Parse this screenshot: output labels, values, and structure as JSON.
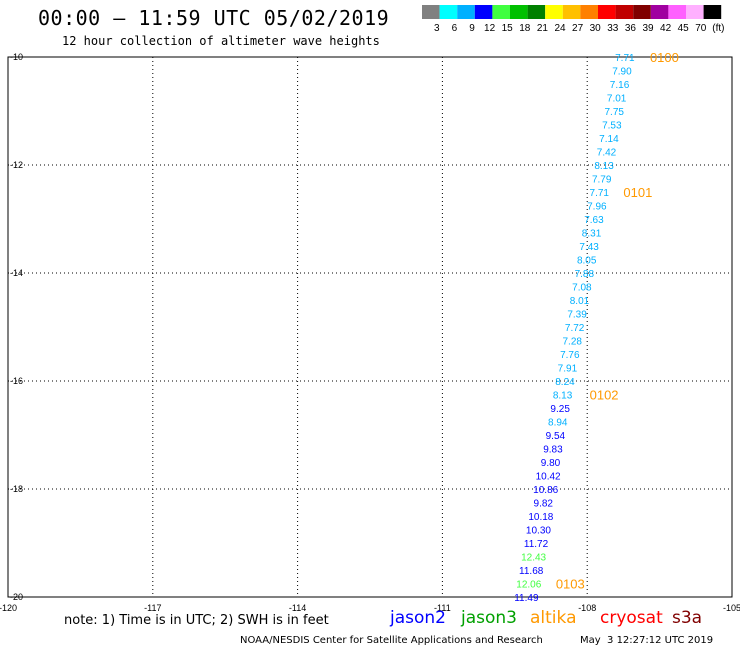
{
  "header": {
    "title": "00:00 – 11:59 UTC 05/02/2019",
    "subtitle": "12 hour collection of altimeter wave heights"
  },
  "colorbar": {
    "labels": [
      "3",
      "6",
      "9",
      "12",
      "15",
      "18",
      "21",
      "24",
      "27",
      "30",
      "33",
      "36",
      "39",
      "42",
      "45",
      "70",
      "(ft)"
    ],
    "colors": [
      "#808080",
      "#00ffff",
      "#00b0ff",
      "#0000ff",
      "#40ff40",
      "#00c000",
      "#008000",
      "#ffff00",
      "#ffc000",
      "#ff8000",
      "#ff0000",
      "#c00000",
      "#800000",
      "#a000a0",
      "#ff60ff",
      "#ffb0ff",
      "#000000"
    ]
  },
  "satellites": {
    "jason2": {
      "label": "jason2",
      "color": "#0000ff"
    },
    "jason3": {
      "label": "jason3",
      "color": "#00a000"
    },
    "altika": {
      "label": "altika",
      "color": "#ff9900"
    },
    "cryosat": {
      "label": "cryosat",
      "color": "#ff0000"
    },
    "s3a": {
      "label": "s3a",
      "color": "#800000"
    }
  },
  "footer": {
    "note": "note: 1) Time is in UTC; 2) SWH is in feet",
    "credit": "NOAA/NESDIS Center for Satellite Applications and Research",
    "timestamp": "May  3 12:27:12 UTC 2019"
  },
  "chart_data": {
    "type": "scatter",
    "x_ticks": [
      "-120",
      "-117",
      "-114",
      "-111",
      "-108",
      "-105"
    ],
    "y_ticks": [
      "-10",
      "-12",
      "-14",
      "-16",
      "-18",
      "-20"
    ],
    "xlim": [
      -120,
      -105
    ],
    "ylim": [
      -20,
      -10
    ],
    "grid": true,
    "points": [
      {
        "lon": -107.22,
        "lat": -10.0,
        "value": "7.71",
        "color": "#00b0ff"
      },
      {
        "lon": -107.28,
        "lat": -10.25,
        "value": "7.90",
        "color": "#00b0ff"
      },
      {
        "lon": -107.33,
        "lat": -10.5,
        "value": "7.16",
        "color": "#00b0ff"
      },
      {
        "lon": -107.39,
        "lat": -10.75,
        "value": "7.01",
        "color": "#00b0ff"
      },
      {
        "lon": -107.44,
        "lat": -11.0,
        "value": "7.75",
        "color": "#00b0ff"
      },
      {
        "lon": -107.49,
        "lat": -11.25,
        "value": "7.53",
        "color": "#00b0ff"
      },
      {
        "lon": -107.55,
        "lat": -11.5,
        "value": "7.14",
        "color": "#00b0ff"
      },
      {
        "lon": -107.6,
        "lat": -11.75,
        "value": "7.42",
        "color": "#00b0ff"
      },
      {
        "lon": -107.65,
        "lat": -12.0,
        "value": "8.13",
        "color": "#00b0ff"
      },
      {
        "lon": -107.7,
        "lat": -12.25,
        "value": "7.79",
        "color": "#00b0ff"
      },
      {
        "lon": -107.75,
        "lat": -12.5,
        "value": "7.71",
        "color": "#00b0ff"
      },
      {
        "lon": -107.8,
        "lat": -12.75,
        "value": "7.96",
        "color": "#00b0ff"
      },
      {
        "lon": -107.86,
        "lat": -13.0,
        "value": "7.63",
        "color": "#00b0ff"
      },
      {
        "lon": -107.91,
        "lat": -13.25,
        "value": "8.31",
        "color": "#00b0ff"
      },
      {
        "lon": -107.96,
        "lat": -13.5,
        "value": "7.43",
        "color": "#00b0ff"
      },
      {
        "lon": -108.01,
        "lat": -13.75,
        "value": "8.05",
        "color": "#00b0ff"
      },
      {
        "lon": -108.06,
        "lat": -14.0,
        "value": "7.88",
        "color": "#00b0ff"
      },
      {
        "lon": -108.11,
        "lat": -14.25,
        "value": "7.08",
        "color": "#00b0ff"
      },
      {
        "lon": -108.16,
        "lat": -14.5,
        "value": "8.01",
        "color": "#00b0ff"
      },
      {
        "lon": -108.21,
        "lat": -14.75,
        "value": "7.39",
        "color": "#00b0ff"
      },
      {
        "lon": -108.26,
        "lat": -15.0,
        "value": "7.72",
        "color": "#00b0ff"
      },
      {
        "lon": -108.31,
        "lat": -15.25,
        "value": "7.28",
        "color": "#00b0ff"
      },
      {
        "lon": -108.36,
        "lat": -15.5,
        "value": "7.76",
        "color": "#00b0ff"
      },
      {
        "lon": -108.41,
        "lat": -15.75,
        "value": "7.91",
        "color": "#00b0ff"
      },
      {
        "lon": -108.46,
        "lat": -16.0,
        "value": "8.24",
        "color": "#00b0ff"
      },
      {
        "lon": -108.51,
        "lat": -16.25,
        "value": "8.13",
        "color": "#00b0ff"
      },
      {
        "lon": -108.56,
        "lat": -16.5,
        "value": "9.25",
        "color": "#0000ff"
      },
      {
        "lon": -108.61,
        "lat": -16.75,
        "value": "8.94",
        "color": "#00b0ff"
      },
      {
        "lon": -108.66,
        "lat": -17.0,
        "value": "9.54",
        "color": "#0000ff"
      },
      {
        "lon": -108.71,
        "lat": -17.25,
        "value": "9.83",
        "color": "#0000ff"
      },
      {
        "lon": -108.76,
        "lat": -17.5,
        "value": "9.80",
        "color": "#0000ff"
      },
      {
        "lon": -108.81,
        "lat": -17.75,
        "value": "10.42",
        "color": "#0000ff"
      },
      {
        "lon": -108.86,
        "lat": -18.0,
        "value": "10.86",
        "color": "#0000ff"
      },
      {
        "lon": -108.91,
        "lat": -18.25,
        "value": "9.82",
        "color": "#0000ff"
      },
      {
        "lon": -108.96,
        "lat": -18.5,
        "value": "10.18",
        "color": "#0000ff"
      },
      {
        "lon": -109.01,
        "lat": -18.75,
        "value": "10.30",
        "color": "#0000ff"
      },
      {
        "lon": -109.06,
        "lat": -19.0,
        "value": "11.72",
        "color": "#0000ff"
      },
      {
        "lon": -109.11,
        "lat": -19.25,
        "value": "12.43",
        "color": "#40ff40"
      },
      {
        "lon": -109.16,
        "lat": -19.5,
        "value": "11.68",
        "color": "#0000ff"
      },
      {
        "lon": -109.21,
        "lat": -19.75,
        "value": "12.06",
        "color": "#40ff40"
      },
      {
        "lon": -109.26,
        "lat": -20.0,
        "value": "11.49",
        "color": "#0000ff"
      }
    ],
    "time_labels": [
      {
        "lon": -106.7,
        "lat": -10.0,
        "text": "0100"
      },
      {
        "lon": -107.25,
        "lat": -12.5,
        "text": "0101"
      },
      {
        "lon": -107.95,
        "lat": -16.25,
        "text": "0102"
      },
      {
        "lon": -108.65,
        "lat": -19.75,
        "text": "0103"
      }
    ],
    "time_label_color": "#ff9900"
  }
}
